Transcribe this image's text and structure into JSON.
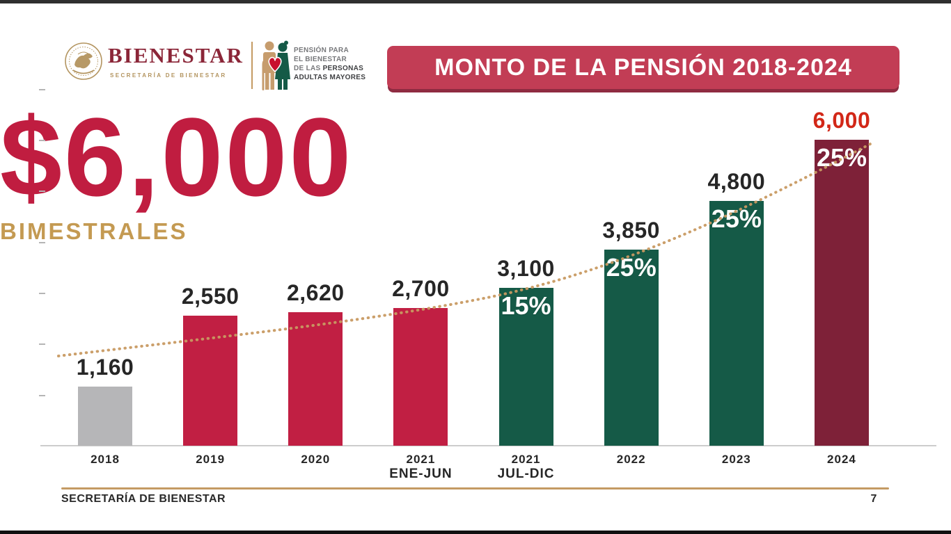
{
  "header": {
    "brand": {
      "wordmark": "BIENESTAR",
      "sub": "SECRETARÍA DE BIENESTAR",
      "emblem_icon": "mexican-eagle-seal",
      "wordmark_color": "#8b2638",
      "gold": "#b3945f"
    },
    "program": {
      "icon": "elderly-couple-heart",
      "line1": "PENSIÓN PARA",
      "line2": "EL BIENESTAR",
      "line3_prefix": "DE LAS ",
      "line3_bold": "PERSONAS",
      "line4": "ADULTAS MAYORES"
    },
    "banner": {
      "label": "MONTO DE LA PENSIÓN 2018-2024",
      "bg": "#c23d55"
    }
  },
  "hero": {
    "amount": "$6,000",
    "unit": "BIMESTRALES",
    "amount_color": "#c01d40",
    "unit_color": "#c49a52"
  },
  "chart_data": {
    "type": "bar",
    "title": "MONTO DE LA PENSIÓN 2018-2024",
    "categories": [
      {
        "l1": "2018",
        "l2": ""
      },
      {
        "l1": "2019",
        "l2": ""
      },
      {
        "l1": "2020",
        "l2": ""
      },
      {
        "l1": "2021",
        "l2": "ENE-JUN"
      },
      {
        "l1": "2021",
        "l2": "JUL-DIC"
      },
      {
        "l1": "2022",
        "l2": ""
      },
      {
        "l1": "2023",
        "l2": ""
      },
      {
        "l1": "2024",
        "l2": ""
      }
    ],
    "values": [
      1160,
      2550,
      2620,
      2700,
      3100,
      3850,
      4800,
      6000
    ],
    "value_labels": [
      "1,160",
      "2,550",
      "2,620",
      "2,700",
      "3,100",
      "3,850",
      "4,800",
      "6,000"
    ],
    "value_label_colors": [
      "#262626",
      "#262626",
      "#262626",
      "#262626",
      "#262626",
      "#262626",
      "#262626",
      "#d22717"
    ],
    "pct_labels": [
      "",
      "",
      "",
      "",
      "15%",
      "25%",
      "25%",
      "25%"
    ],
    "bar_colors": [
      "#b6b6b8",
      "#c11f43",
      "#c11f43",
      "#c11f43",
      "#155a47",
      "#155a47",
      "#155a47",
      "#7e2138"
    ],
    "ylim": [
      0,
      7000
    ],
    "y_ticks": [
      1000,
      2000,
      3000,
      4000,
      5000,
      6000,
      7000
    ],
    "y_tick_labels_visible": false,
    "grid": false,
    "legend": "none",
    "trend": {
      "style": "dotted",
      "color": "#c89a62"
    }
  },
  "footer": {
    "left": "SECRETARÍA DE BIENESTAR",
    "page": "7",
    "line_color": "#c49a63"
  }
}
